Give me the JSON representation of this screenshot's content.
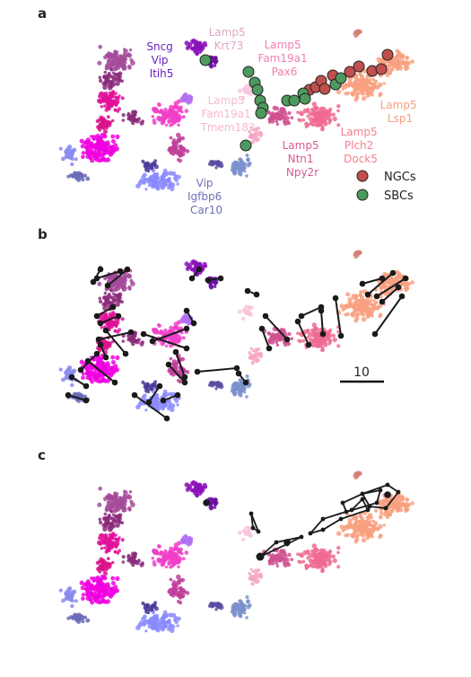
{
  "panels": [
    {
      "letter": "a"
    },
    {
      "letter": "b"
    },
    {
      "letter": "c"
    }
  ],
  "cluster_labels": [
    {
      "lines": [
        "Sncg",
        "Vip",
        "Itih5"
      ],
      "color": "#6a1fbf"
    },
    {
      "lines": [
        "Lamp5",
        "Krt73"
      ],
      "color": "#e0a6c6"
    },
    {
      "lines": [
        "Lamp5",
        "Fam19a1",
        "Pax6"
      ],
      "color": "#f07fb0"
    },
    {
      "lines": [
        "Lamp5",
        "Fam19a1",
        "Tmem182"
      ],
      "color": "#f6b8d2"
    },
    {
      "lines": [
        "Lamp5",
        "Ntn1",
        "Npy2r"
      ],
      "color": "#d85a90"
    },
    {
      "lines": [
        "Lamp5",
        "Plch2",
        "Dock5"
      ],
      "color": "#f47f8e"
    },
    {
      "lines": [
        "Lamp5",
        "Lsp1"
      ],
      "color": "#f4a080"
    },
    {
      "lines": [
        "Vip",
        "Igfbp6",
        "Car10"
      ],
      "color": "#7070b8"
    }
  ],
  "legend": [
    {
      "label": "NGCs",
      "color": "#c0504d"
    },
    {
      "label": "SBCs",
      "color": "#4e9a5e"
    }
  ],
  "scale_bar": {
    "label": "10"
  },
  "colors": {
    "ngc": "#c0504d",
    "sbc": "#4e9a5e",
    "edge": "#1a1a1a"
  }
}
